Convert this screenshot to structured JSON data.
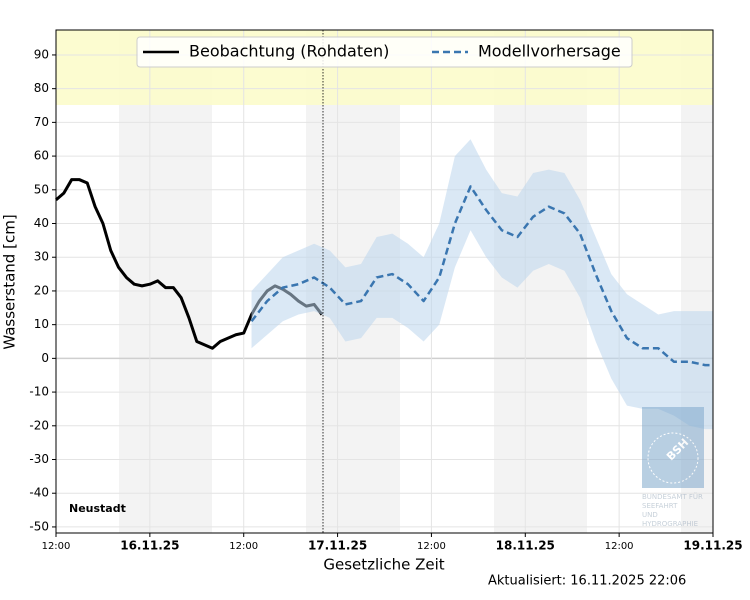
{
  "chart_data": {
    "type": "line",
    "ylabel": "Wasserstand [cm]",
    "xlabel": "Gesetzliche Zeit",
    "annotation": "Neustadt",
    "updated": "Aktualisiert: 16.11.2025 22:06",
    "logo": {
      "mark": "BSH",
      "lines": [
        "BUNDESAMT FÜR",
        "SEEFAHRT",
        "UND",
        "HYDROGRAPHIE"
      ]
    },
    "legend": "upper center",
    "grid": true,
    "ylim": [
      -51.8,
      97.4
    ],
    "yticks": [
      -50,
      -40,
      -30,
      -20,
      -10,
      0,
      10,
      20,
      30,
      40,
      50,
      60,
      70,
      80,
      90
    ],
    "xlim": [
      "2025-11-15 12:00",
      "2025-11-19 00:00"
    ],
    "xticks": [
      {
        "value": "2025-11-15 12:00",
        "label": "12:00"
      },
      {
        "value": "2025-11-16 00:00",
        "label": "16.11.25"
      },
      {
        "value": "2025-11-16 12:00",
        "label": "12:00"
      },
      {
        "value": "2025-11-17 00:00",
        "label": "17.11.25"
      },
      {
        "value": "2025-11-17 12:00",
        "label": "12:00"
      },
      {
        "value": "2025-11-18 00:00",
        "label": "18.11.25"
      },
      {
        "value": "2025-11-18 12:00",
        "label": "12:00"
      },
      {
        "value": "2025-11-19 00:00",
        "label": "19.11.25"
      }
    ],
    "series": [
      {
        "name": "Beobachtung (Rohdaten)",
        "color": "#000000",
        "dash": false,
        "x": [
          "2025-11-15 12:00",
          "2025-11-15 13:00",
          "2025-11-15 14:00",
          "2025-11-15 15:00",
          "2025-11-15 16:00",
          "2025-11-15 17:00",
          "2025-11-15 18:00",
          "2025-11-15 19:00",
          "2025-11-15 20:00",
          "2025-11-15 21:00",
          "2025-11-15 22:00",
          "2025-11-15 23:00",
          "2025-11-16 00:00",
          "2025-11-16 01:00",
          "2025-11-16 02:00",
          "2025-11-16 03:00",
          "2025-11-16 04:00",
          "2025-11-16 05:00",
          "2025-11-16 06:00",
          "2025-11-16 07:00",
          "2025-11-16 08:00",
          "2025-11-16 09:00",
          "2025-11-16 10:00",
          "2025-11-16 11:00",
          "2025-11-16 12:00",
          "2025-11-16 13:00",
          "2025-11-16 14:00",
          "2025-11-16 15:00",
          "2025-11-16 16:00",
          "2025-11-16 17:00",
          "2025-11-16 18:00",
          "2025-11-16 19:00",
          "2025-11-16 20:00",
          "2025-11-16 21:00",
          "2025-11-16 22:00"
        ],
        "values": [
          47,
          49,
          53,
          53,
          52,
          45,
          40,
          32,
          27,
          24,
          22,
          21.5,
          22,
          23,
          21,
          21,
          18,
          12,
          5,
          4,
          3,
          5,
          6,
          7,
          7.5,
          13,
          17,
          20,
          21.5,
          20.5,
          19,
          17,
          15.5,
          16,
          13
        ]
      },
      {
        "name": "Modellvorhersage",
        "color": "#3a76b0",
        "dash": true,
        "x": [
          "2025-11-16 13:00",
          "2025-11-16 15:00",
          "2025-11-16 17:00",
          "2025-11-16 19:00",
          "2025-11-16 21:00",
          "2025-11-16 23:00",
          "2025-11-17 01:00",
          "2025-11-17 03:00",
          "2025-11-17 05:00",
          "2025-11-17 07:00",
          "2025-11-17 09:00",
          "2025-11-17 11:00",
          "2025-11-17 13:00",
          "2025-11-17 15:00",
          "2025-11-17 17:00",
          "2025-11-17 19:00",
          "2025-11-17 21:00",
          "2025-11-17 23:00",
          "2025-11-18 01:00",
          "2025-11-18 03:00",
          "2025-11-18 05:00",
          "2025-11-18 07:00",
          "2025-11-18 09:00",
          "2025-11-18 11:00",
          "2025-11-18 13:00",
          "2025-11-18 15:00",
          "2025-11-18 17:00",
          "2025-11-18 19:00",
          "2025-11-18 21:00",
          "2025-11-18 23:00",
          "2025-11-19 00:00"
        ],
        "values": [
          11,
          17,
          21,
          22,
          24,
          21,
          16,
          17,
          24,
          25,
          22,
          17,
          24,
          40,
          51,
          44,
          38,
          36,
          42,
          45,
          43,
          37,
          25,
          14,
          6,
          3,
          3,
          -1,
          -1,
          -2,
          -2
        ],
        "band": {
          "color": "#bcd6ec",
          "lower": [
            3,
            7,
            11,
            13,
            14,
            12,
            5,
            6,
            12,
            12,
            9,
            5,
            10,
            27,
            38,
            30,
            24,
            21,
            26,
            28,
            26,
            18,
            5,
            -6,
            -14,
            -15,
            -15,
            -17,
            -20,
            -21,
            -21
          ],
          "upper": [
            20,
            25,
            30,
            32,
            34,
            32,
            27,
            28,
            36,
            37,
            34,
            30,
            40,
            60,
            65,
            56,
            49,
            48,
            55,
            56,
            55,
            47,
            36,
            25,
            19,
            16,
            13,
            14,
            14,
            14,
            14
          ]
        }
      }
    ]
  }
}
